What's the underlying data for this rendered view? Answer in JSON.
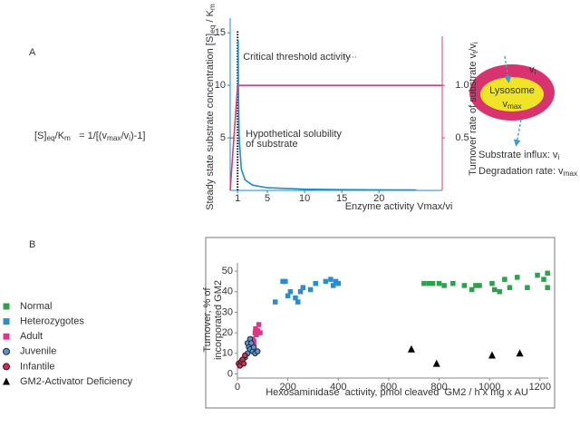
{
  "chart_data": [
    {
      "type": "line",
      "panel": "A",
      "equation": [
        {
          "text": "[S]"
        },
        {
          "text": "eq",
          "sub": true
        },
        {
          "text": "/K"
        },
        {
          "text": "m",
          "sub": true
        },
        {
          "text": "   = 1/[(v"
        },
        {
          "text": "max",
          "sub": true
        },
        {
          "text": "/v"
        },
        {
          "text": "i",
          "sub": true
        },
        {
          "text": ")-1]"
        }
      ],
      "xlabel": [
        {
          "text": "Enzyme activity Vmax/vi"
        }
      ],
      "ylabel": [
        {
          "text": "Steady state substrate concentration [S]"
        },
        {
          "text": "eq",
          "sub": true
        },
        {
          "text": " / K"
        },
        {
          "text": "m",
          "sub": true
        }
      ],
      "y2label": [
        {
          "text": "Turnover rate of substrate v"
        },
        {
          "text": "t",
          "sub": true
        },
        {
          "text": "/v"
        },
        {
          "text": "i",
          "sub": true
        }
      ],
      "xlim": [
        0,
        28.5
      ],
      "xticks": [
        1,
        5,
        10,
        15,
        20
      ],
      "ylim": [
        0,
        16.4
      ],
      "yticks": [
        5,
        10,
        15
      ],
      "y2lim": [
        0,
        1.64
      ],
      "y2ticks": [
        0.5,
        {
          "value": 1,
          "label": "1.0"
        }
      ],
      "series": [
        {
          "color": "#1a8fc9",
          "x": [
            1.07,
            1.1,
            1.2,
            1.5,
            2,
            3,
            5,
            10,
            15,
            20,
            25
          ],
          "values": [
            14.3,
            10,
            5,
            2,
            1,
            0.5,
            0.25,
            0.11,
            0.07,
            0.05,
            0.04
          ]
        },
        {
          "color": "#d0417b",
          "axis": "y2",
          "x": [
            0,
            1,
            28.5
          ],
          "values": [
            0,
            1,
            1
          ]
        }
      ],
      "annotations": [
        {
          "lines": [
            "Critical threshold activity"
          ],
          "x": 1,
          "style": "dotted"
        },
        {
          "lines": [
            "Hypothetical solubility",
            "of substrate"
          ],
          "y": 5,
          "style": "dashed"
        }
      ]
    },
    {
      "type": "scatter",
      "panel": "B",
      "xlabel": "Hexosaminidase  activity, pmol cleaved  GM2 / h x mg x AU",
      "ylabel": [
        "Turnover, % of",
        "incorporated GM2"
      ],
      "xlim": [
        0,
        1233
      ],
      "xticks": [
        0,
        200,
        400,
        600,
        800,
        1000,
        1200
      ],
      "ylim": [
        -2,
        54
      ],
      "yticks": [
        0,
        10,
        20,
        30,
        40,
        50
      ],
      "legend": "left",
      "series": [
        {
          "name": "Normal",
          "marker": "square",
          "color": "#2ca24a",
          "x": [
            740,
            760,
            775,
            800,
            820,
            855,
            900,
            930,
            945,
            960,
            1010,
            1020,
            1040,
            1060,
            1080,
            1110,
            1150,
            1190,
            1215,
            1230,
            1230
          ],
          "values": [
            44,
            44,
            44,
            44,
            43,
            44,
            43,
            41,
            43,
            43,
            44,
            41,
            40,
            46,
            42,
            47,
            42,
            48,
            46,
            49,
            42
          ]
        },
        {
          "name": "Heterozygotes",
          "marker": "square",
          "color": "#2b8ccf",
          "x": [
            150,
            180,
            190,
            200,
            210,
            230,
            240,
            250,
            260,
            290,
            310,
            350,
            370,
            380,
            390,
            400
          ],
          "values": [
            35,
            45,
            45,
            38,
            40,
            37,
            35,
            40,
            42,
            41,
            44,
            45,
            46,
            43,
            45,
            44
          ]
        },
        {
          "name": "Adult",
          "marker": "square",
          "color": "#e0368a",
          "x": [
            55,
            60,
            65,
            65,
            70,
            72,
            75,
            80,
            85,
            90
          ],
          "values": [
            14,
            17,
            16,
            14,
            20,
            22,
            19,
            21,
            24,
            20
          ]
        },
        {
          "name": "Juvenile",
          "marker": "circle",
          "color": "#5b93c9",
          "edgecolor": "#1f2a44",
          "x": [
            20,
            30,
            40,
            40,
            45,
            50,
            50,
            55,
            60,
            65,
            70,
            80
          ],
          "values": [
            5,
            8,
            10,
            15,
            13,
            12,
            17,
            15,
            11,
            13,
            10,
            11
          ]
        },
        {
          "name": "Infantile",
          "marker": "circle",
          "color": "#c8324f",
          "edgecolor": "#3a1020",
          "x": [
            5,
            10,
            15,
            20,
            25,
            30
          ],
          "values": [
            5,
            4,
            6,
            7,
            5,
            9
          ]
        },
        {
          "name": "GM2-Activator Deficiency",
          "marker": "triangle",
          "color": "#000000",
          "x": [
            690,
            790,
            1010,
            1120
          ],
          "values": [
            12,
            5,
            9,
            10
          ]
        }
      ]
    }
  ],
  "diagram": {
    "organelle": "Lysosome",
    "rate": [
      {
        "text": "v"
      },
      {
        "text": "max",
        "sub": true
      }
    ],
    "influx": [
      {
        "text": "v"
      },
      {
        "text": "i",
        "sub": true
      }
    ],
    "key": [
      [
        {
          "text": "Substrate influx: v"
        },
        {
          "text": "i",
          "sub": true
        }
      ],
      [
        {
          "text": "Degradation rate: v"
        },
        {
          "text": "max",
          "sub": true
        }
      ]
    ]
  }
}
